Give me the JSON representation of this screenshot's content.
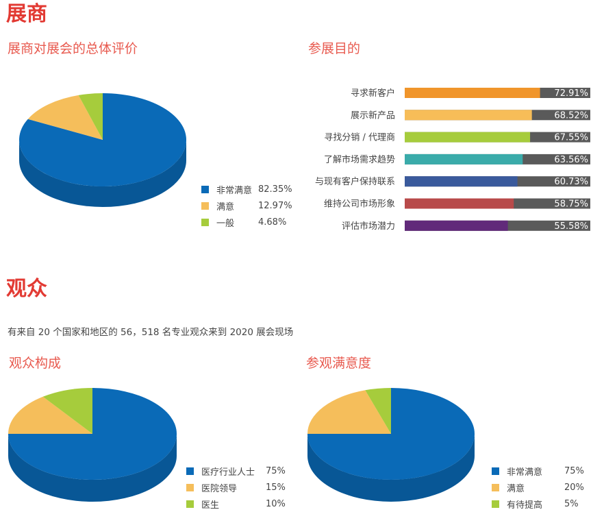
{
  "exhibitor": {
    "section_title": "展商",
    "satisfaction": {
      "title": "展商对展会的总体评价",
      "chart_data": {
        "type": "pie",
        "title": "展商对展会的总体评价",
        "slices": [
          {
            "label": "非常满意",
            "value": 82.35,
            "display": "82.35%",
            "color": "#0a6ab7"
          },
          {
            "label": "满意",
            "value": 12.97,
            "display": "12.97%",
            "color": "#f5be5b"
          },
          {
            "label": "一般",
            "value": 4.68,
            "display": "4.68%",
            "color": "#a6cc3c"
          }
        ]
      }
    },
    "purpose": {
      "title": "参展目的",
      "chart_data": {
        "type": "bar",
        "title": "参展目的",
        "orientation": "horizontal",
        "xlim": [
          0,
          100
        ],
        "categories": [
          "寻求新客户",
          "展示新产品",
          "寻找分销 / 代理商",
          "了解市场需求趋势",
          "与现有客户保持联系",
          "维持公司市场形象",
          "评估市场潜力"
        ],
        "values": [
          72.91,
          68.52,
          67.55,
          63.56,
          60.73,
          58.75,
          55.58
        ],
        "labels": [
          "72.91%",
          "68.52%",
          "67.55%",
          "63.56%",
          "60.73%",
          "58.75%",
          "55.58%"
        ],
        "colors": [
          "#f0952b",
          "#f7bd58",
          "#a6cc3c",
          "#3aabaa",
          "#3a5a9c",
          "#b84a4a",
          "#612a7a"
        ],
        "remainder_color": "#5a5a5a"
      }
    }
  },
  "visitor": {
    "section_title": "观众",
    "description": "有来自 20 个国家和地区的 56，518 名专业观众来到 2020 展会现场",
    "composition": {
      "title": "观众构成",
      "chart_data": {
        "type": "pie",
        "title": "观众构成",
        "slices": [
          {
            "label": "医疗行业人士",
            "value": 75,
            "display": "75%",
            "color": "#0a6ab7"
          },
          {
            "label": "医院领导",
            "value": 15,
            "display": "15%",
            "color": "#f5be5b"
          },
          {
            "label": "医生",
            "value": 10,
            "display": "10%",
            "color": "#a6cc3c"
          }
        ]
      }
    },
    "satisfaction": {
      "title": "参观满意度",
      "chart_data": {
        "type": "pie",
        "title": "参观满意度",
        "slices": [
          {
            "label": "非常满意",
            "value": 75,
            "display": "75%",
            "color": "#0a6ab7"
          },
          {
            "label": "满意",
            "value": 20,
            "display": "20%",
            "color": "#f5be5b"
          },
          {
            "label": "有待提高",
            "value": 5,
            "display": "5%",
            "color": "#a6cc3c"
          }
        ]
      }
    }
  }
}
